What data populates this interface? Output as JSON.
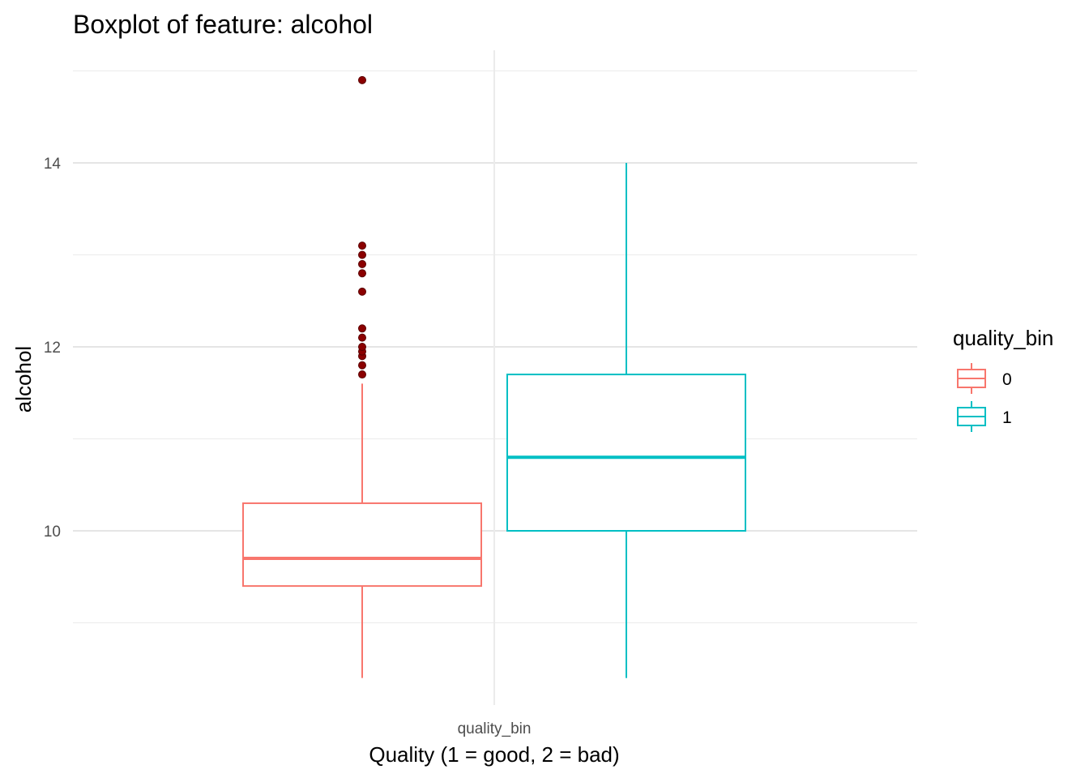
{
  "chart_data": {
    "type": "boxplot",
    "title": "Boxplot of feature: alcohol",
    "xlabel": "Quality (1 = good, 2 = bad)",
    "ylabel": "alcohol",
    "x_tick_label": "quality_bin",
    "y_ticks": [
      10,
      12,
      14
    ],
    "ylim": [
      8.0,
      15.2
    ],
    "grid": true,
    "legend": {
      "title": "quality_bin",
      "position": "right",
      "entries": [
        "0",
        "1"
      ]
    },
    "series": [
      {
        "name": "0",
        "color": "#F8766D",
        "whisker_low": 8.4,
        "q1": 9.4,
        "median": 9.7,
        "q3": 10.3,
        "whisker_high": 11.6,
        "outliers": [
          11.7,
          11.8,
          11.9,
          11.95,
          12.0,
          12.1,
          12.2,
          12.6,
          12.8,
          12.9,
          13.0,
          13.1,
          14.9
        ],
        "outlier_color": "#8B0000"
      },
      {
        "name": "1",
        "color": "#00BFC4",
        "whisker_low": 8.4,
        "q1": 10.0,
        "median": 10.8,
        "q3": 11.7,
        "whisker_high": 14.0,
        "outliers": []
      }
    ]
  }
}
